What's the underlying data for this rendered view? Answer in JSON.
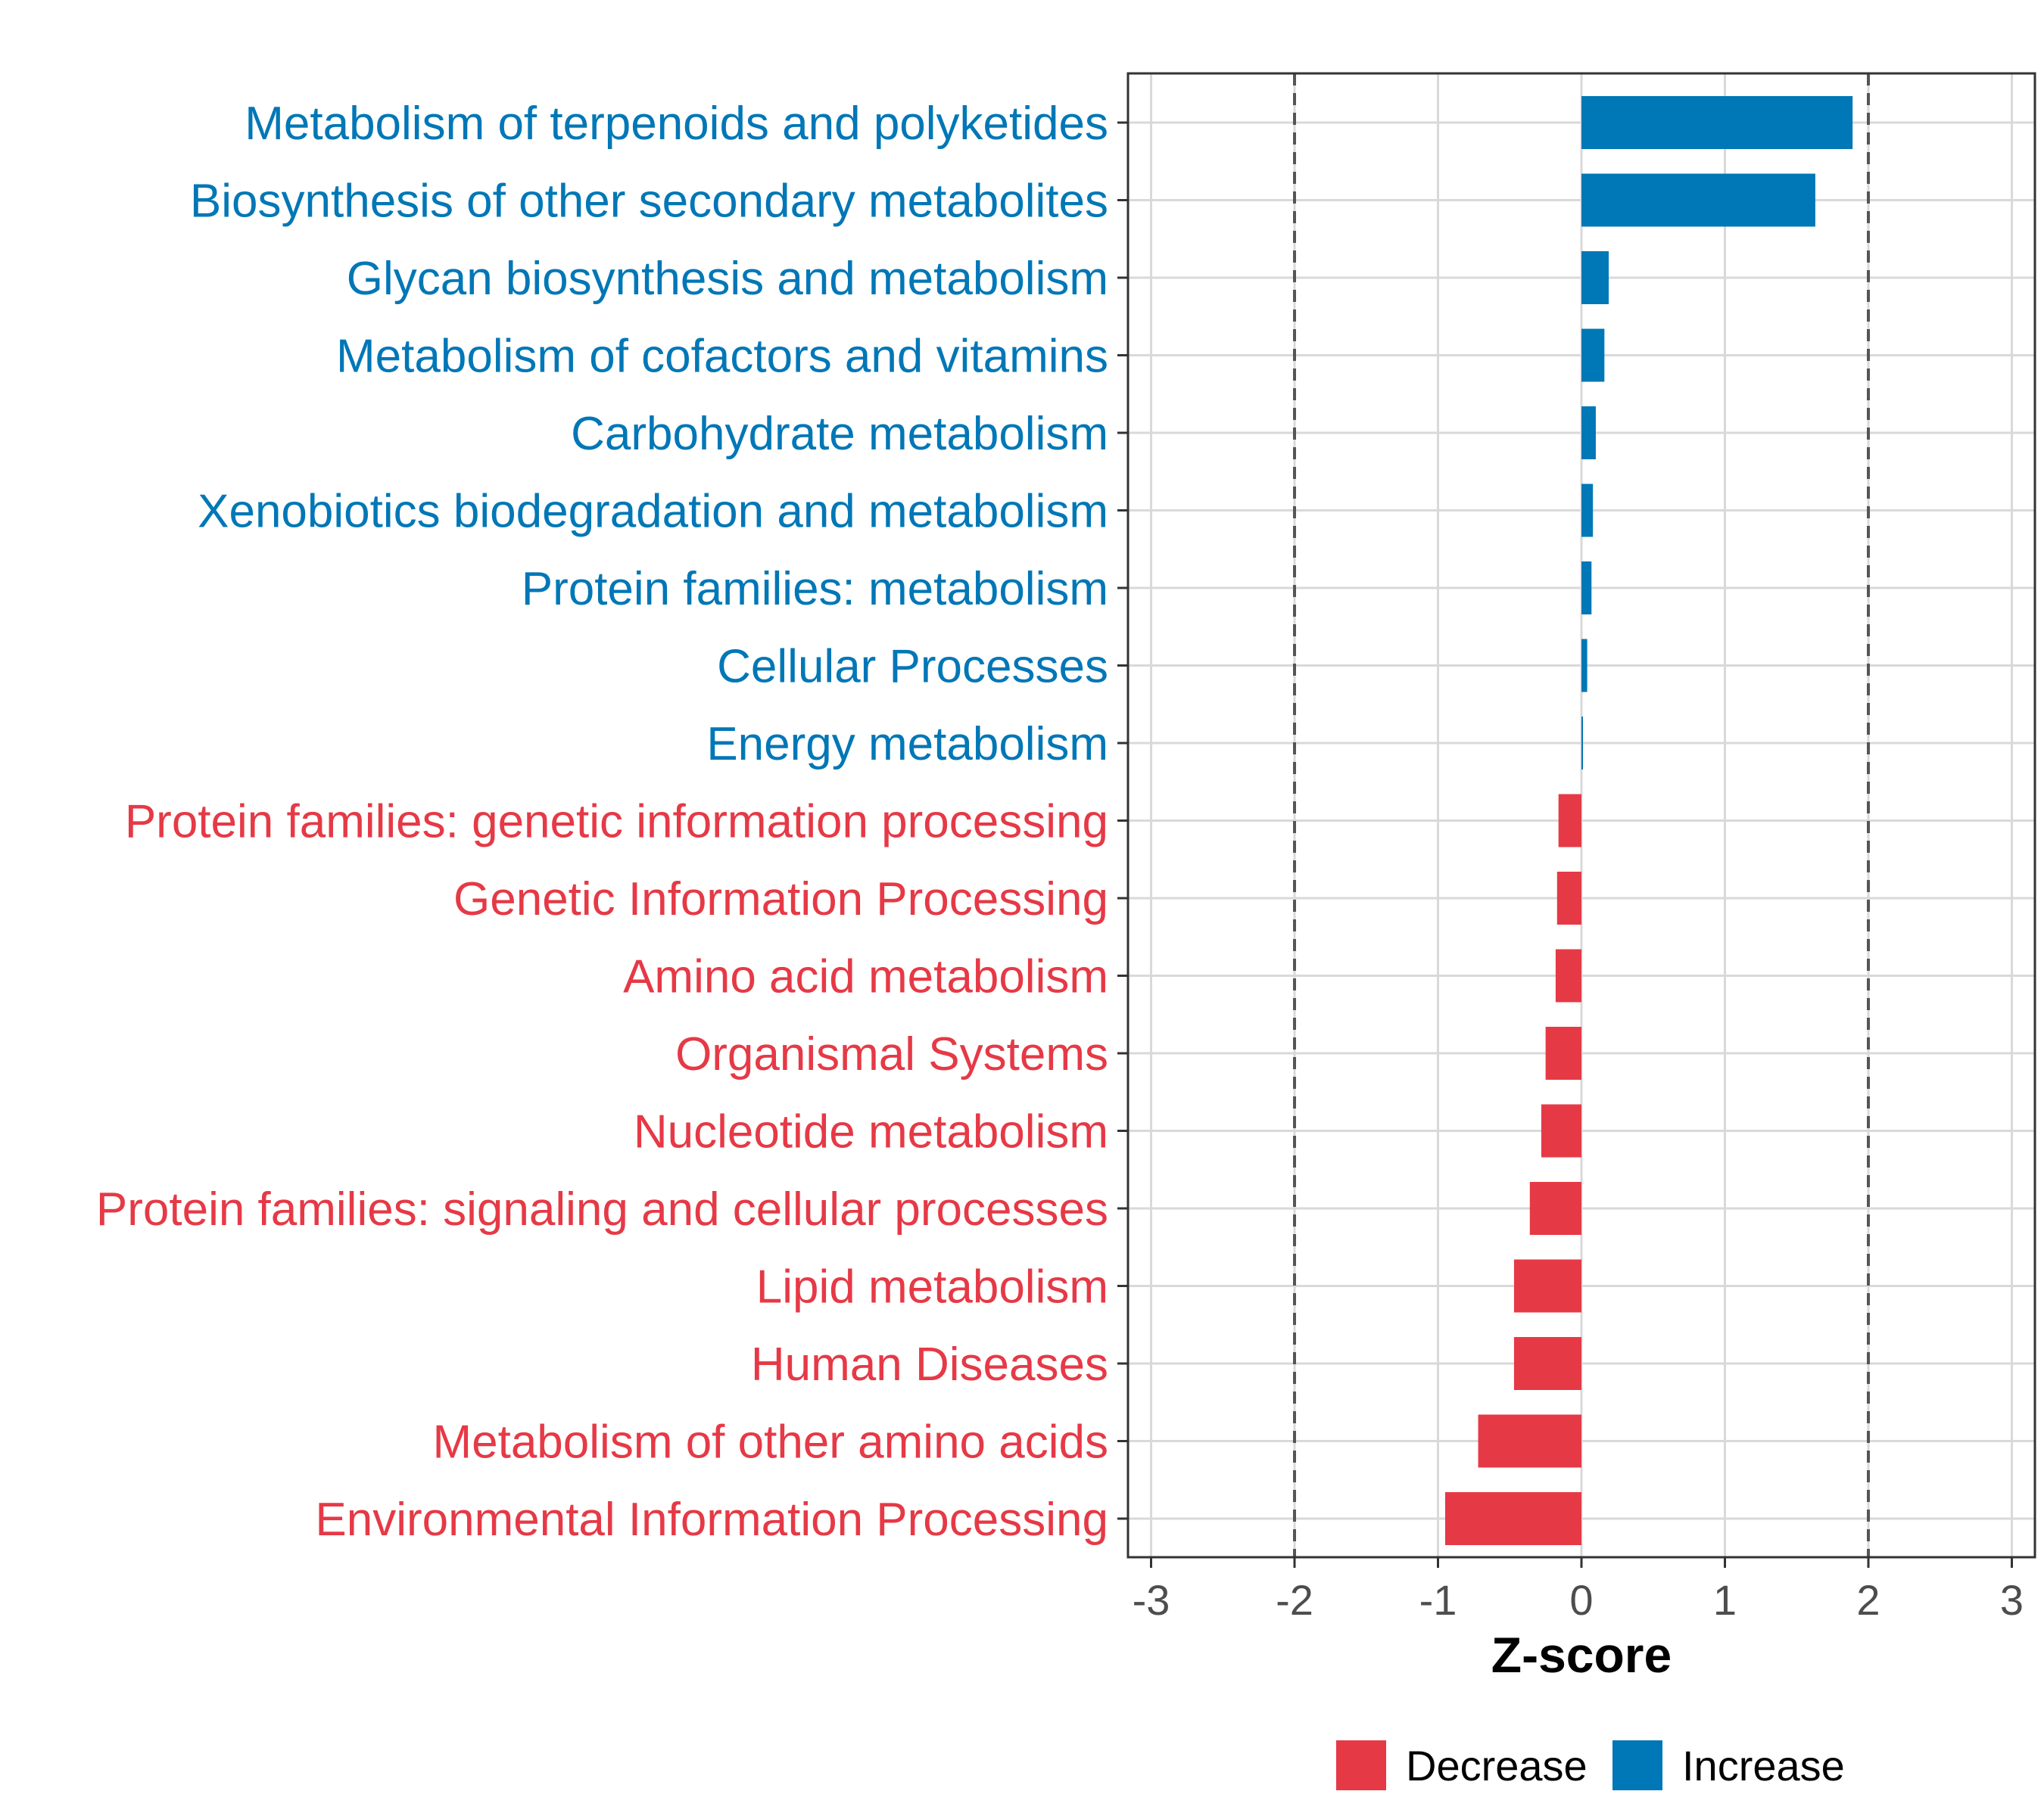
{
  "chart_data": {
    "type": "bar",
    "orientation": "horizontal",
    "xlabel": "Z-score",
    "xlim": [
      -3,
      3
    ],
    "x_ticks": [
      -3,
      -2,
      -1,
      0,
      1,
      2,
      3
    ],
    "reference_lines": [
      -2,
      2
    ],
    "grid": true,
    "legend_position": "bottom",
    "categories": [
      "Metabolism of terpenoids and polyketides",
      "Biosynthesis of other secondary metabolites",
      "Glycan biosynthesis and metabolism",
      "Metabolism of cofactors and vitamins",
      "Carbohydrate metabolism",
      "Xenobiotics biodegradation and metabolism",
      "Protein families: metabolism",
      "Cellular Processes",
      "Energy metabolism",
      "Protein families: genetic information processing",
      "Genetic Information Processing",
      "Amino acid metabolism",
      "Organismal Systems",
      "Nucleotide metabolism",
      "Protein families: signaling and cellular processes",
      "Lipid metabolism",
      "Human Diseases",
      "Metabolism of other amino acids",
      "Environmental Information Processing"
    ],
    "values": [
      1.89,
      1.63,
      0.19,
      0.16,
      0.1,
      0.08,
      0.07,
      0.04,
      0.01,
      -0.16,
      -0.17,
      -0.18,
      -0.25,
      -0.28,
      -0.36,
      -0.47,
      -0.47,
      -0.72,
      -0.95
    ],
    "groups": [
      "Increase",
      "Increase",
      "Increase",
      "Increase",
      "Increase",
      "Increase",
      "Increase",
      "Increase",
      "Increase",
      "Decrease",
      "Decrease",
      "Decrease",
      "Decrease",
      "Decrease",
      "Decrease",
      "Decrease",
      "Decrease",
      "Decrease",
      "Decrease"
    ],
    "legend": [
      {
        "name": "Decrease",
        "color": "#e63946"
      },
      {
        "name": "Increase",
        "color": "#0077b6"
      }
    ]
  },
  "colors": {
    "increase": "#0077b6",
    "decrease": "#e63946",
    "grid": "#d9d9d9",
    "refline": "#555555"
  }
}
